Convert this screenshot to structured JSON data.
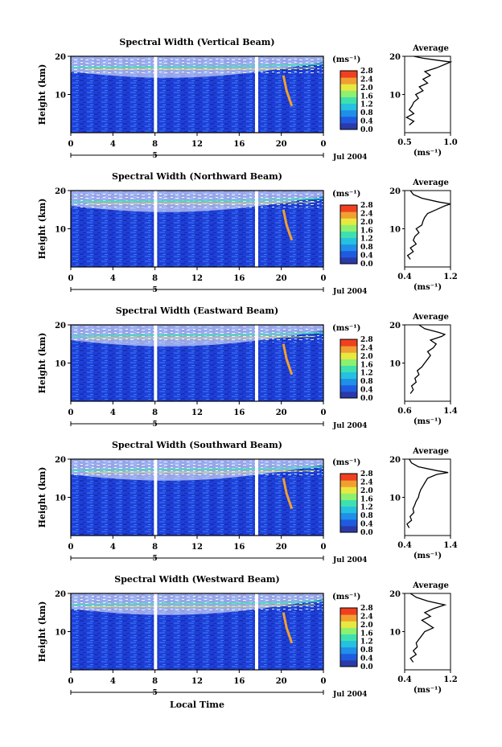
{
  "figure": {
    "xlabel_bottom": "Local Time",
    "date_label": "Jul 2004",
    "time_ticks": [
      "0",
      "4",
      "8",
      "12",
      "16",
      "20",
      "0"
    ],
    "day_label": "5",
    "height_ticks": [
      "10",
      "20"
    ],
    "ylabel": "Height (km)",
    "unit_label": "(ms⁻¹)",
    "colorbar_ticks": [
      "0.0",
      "0.4",
      "0.8",
      "1.2",
      "1.6",
      "2.0",
      "2.4",
      "2.8"
    ],
    "avg_title": "Average",
    "avg_unit": "(ms⁻¹)",
    "colors": {
      "background": "#1e3fd8",
      "colormap": [
        "#2b3aa8",
        "#1f5be0",
        "#1f8fe8",
        "#26c0e0",
        "#3ee0b0",
        "#8ef070",
        "#e8e840",
        "#f0a030",
        "#f04020"
      ]
    }
  },
  "chart_data": [
    {
      "type": "heatmap",
      "title": "Spectral Width (Vertical Beam)",
      "x_range": [
        0,
        24
      ],
      "y_range": [
        0,
        20
      ],
      "color_range": [
        0.0,
        2.8
      ],
      "avg": {
        "xticks": [
          "0.5",
          "1.0"
        ],
        "xlim": [
          0.5,
          1.0
        ],
        "profile": [
          [
            2,
            0.55
          ],
          [
            3,
            0.6
          ],
          [
            4,
            0.52
          ],
          [
            5,
            0.6
          ],
          [
            6,
            0.55
          ],
          [
            7,
            0.58
          ],
          [
            8,
            0.6
          ],
          [
            9,
            0.65
          ],
          [
            10,
            0.62
          ],
          [
            11,
            0.7
          ],
          [
            12,
            0.66
          ],
          [
            13,
            0.75
          ],
          [
            14,
            0.7
          ],
          [
            15,
            0.78
          ],
          [
            16,
            0.72
          ],
          [
            17,
            0.85
          ],
          [
            18,
            0.95
          ],
          [
            18.5,
            1.0
          ],
          [
            19,
            0.85
          ],
          [
            19.5,
            0.7
          ],
          [
            20,
            0.6
          ]
        ]
      }
    },
    {
      "type": "heatmap",
      "title": "Spectral Width (Northward Beam)",
      "x_range": [
        0,
        24
      ],
      "y_range": [
        0,
        20
      ],
      "color_range": [
        0.0,
        2.8
      ],
      "avg": {
        "xticks": [
          "0.4",
          "1.2"
        ],
        "xlim": [
          0.4,
          1.2
        ],
        "profile": [
          [
            2,
            0.5
          ],
          [
            3,
            0.45
          ],
          [
            4,
            0.55
          ],
          [
            5,
            0.5
          ],
          [
            6,
            0.6
          ],
          [
            7,
            0.55
          ],
          [
            8,
            0.58
          ],
          [
            9,
            0.65
          ],
          [
            10,
            0.6
          ],
          [
            11,
            0.7
          ],
          [
            12,
            0.72
          ],
          [
            13,
            0.75
          ],
          [
            14,
            0.8
          ],
          [
            15,
            0.95
          ],
          [
            16,
            1.1
          ],
          [
            16.5,
            1.2
          ],
          [
            17,
            1.0
          ],
          [
            18,
            0.7
          ],
          [
            19,
            0.55
          ],
          [
            20,
            0.5
          ]
        ]
      }
    },
    {
      "type": "heatmap",
      "title": "Spectral Width (Eastward Beam)",
      "x_range": [
        0,
        24
      ],
      "y_range": [
        0,
        20
      ],
      "color_range": [
        0.0,
        2.8
      ],
      "avg": {
        "xticks": [
          "0.6",
          "1.4"
        ],
        "xlim": [
          0.6,
          1.4
        ],
        "profile": [
          [
            2,
            0.7
          ],
          [
            3,
            0.75
          ],
          [
            4,
            0.72
          ],
          [
            5,
            0.8
          ],
          [
            6,
            0.78
          ],
          [
            7,
            0.85
          ],
          [
            8,
            0.82
          ],
          [
            9,
            0.9
          ],
          [
            10,
            0.95
          ],
          [
            11,
            1.0
          ],
          [
            12,
            1.05
          ],
          [
            13,
            1.0
          ],
          [
            14,
            1.1
          ],
          [
            15,
            1.15
          ],
          [
            16,
            1.05
          ],
          [
            17,
            1.25
          ],
          [
            17.5,
            1.3
          ],
          [
            18,
            1.2
          ],
          [
            19,
            0.95
          ],
          [
            20,
            0.85
          ]
        ]
      }
    },
    {
      "type": "heatmap",
      "title": "Spectral Width (Southward Beam)",
      "x_range": [
        0,
        24
      ],
      "y_range": [
        0,
        20
      ],
      "color_range": [
        0.0,
        2.8
      ],
      "avg": {
        "xticks": [
          "0.4",
          "1.4"
        ],
        "xlim": [
          0.4,
          1.4
        ],
        "profile": [
          [
            2,
            0.5
          ],
          [
            3,
            0.45
          ],
          [
            4,
            0.55
          ],
          [
            5,
            0.52
          ],
          [
            6,
            0.6
          ],
          [
            7,
            0.58
          ],
          [
            8,
            0.62
          ],
          [
            9,
            0.65
          ],
          [
            10,
            0.7
          ],
          [
            11,
            0.72
          ],
          [
            12,
            0.75
          ],
          [
            13,
            0.8
          ],
          [
            14,
            0.85
          ],
          [
            15,
            0.9
          ],
          [
            16,
            1.1
          ],
          [
            16.5,
            1.35
          ],
          [
            17,
            1.1
          ],
          [
            18,
            0.7
          ],
          [
            19,
            0.55
          ],
          [
            20,
            0.5
          ]
        ]
      }
    },
    {
      "type": "heatmap",
      "title": "Spectral Width (Westward Beam)",
      "x_range": [
        0,
        24
      ],
      "y_range": [
        0,
        20
      ],
      "color_range": [
        0.0,
        2.8
      ],
      "avg": {
        "xticks": [
          "0.4",
          "1.2"
        ],
        "xlim": [
          0.4,
          1.2
        ],
        "profile": [
          [
            2,
            0.55
          ],
          [
            3,
            0.5
          ],
          [
            4,
            0.6
          ],
          [
            5,
            0.55
          ],
          [
            6,
            0.62
          ],
          [
            7,
            0.6
          ],
          [
            8,
            0.65
          ],
          [
            9,
            0.7
          ],
          [
            10,
            0.75
          ],
          [
            11,
            0.9
          ],
          [
            12,
            0.8
          ],
          [
            13,
            0.7
          ],
          [
            14,
            0.85
          ],
          [
            15,
            0.75
          ],
          [
            16,
            0.9
          ],
          [
            17,
            1.1
          ],
          [
            18,
            0.8
          ],
          [
            19,
            0.6
          ],
          [
            20,
            0.5
          ]
        ]
      }
    }
  ]
}
